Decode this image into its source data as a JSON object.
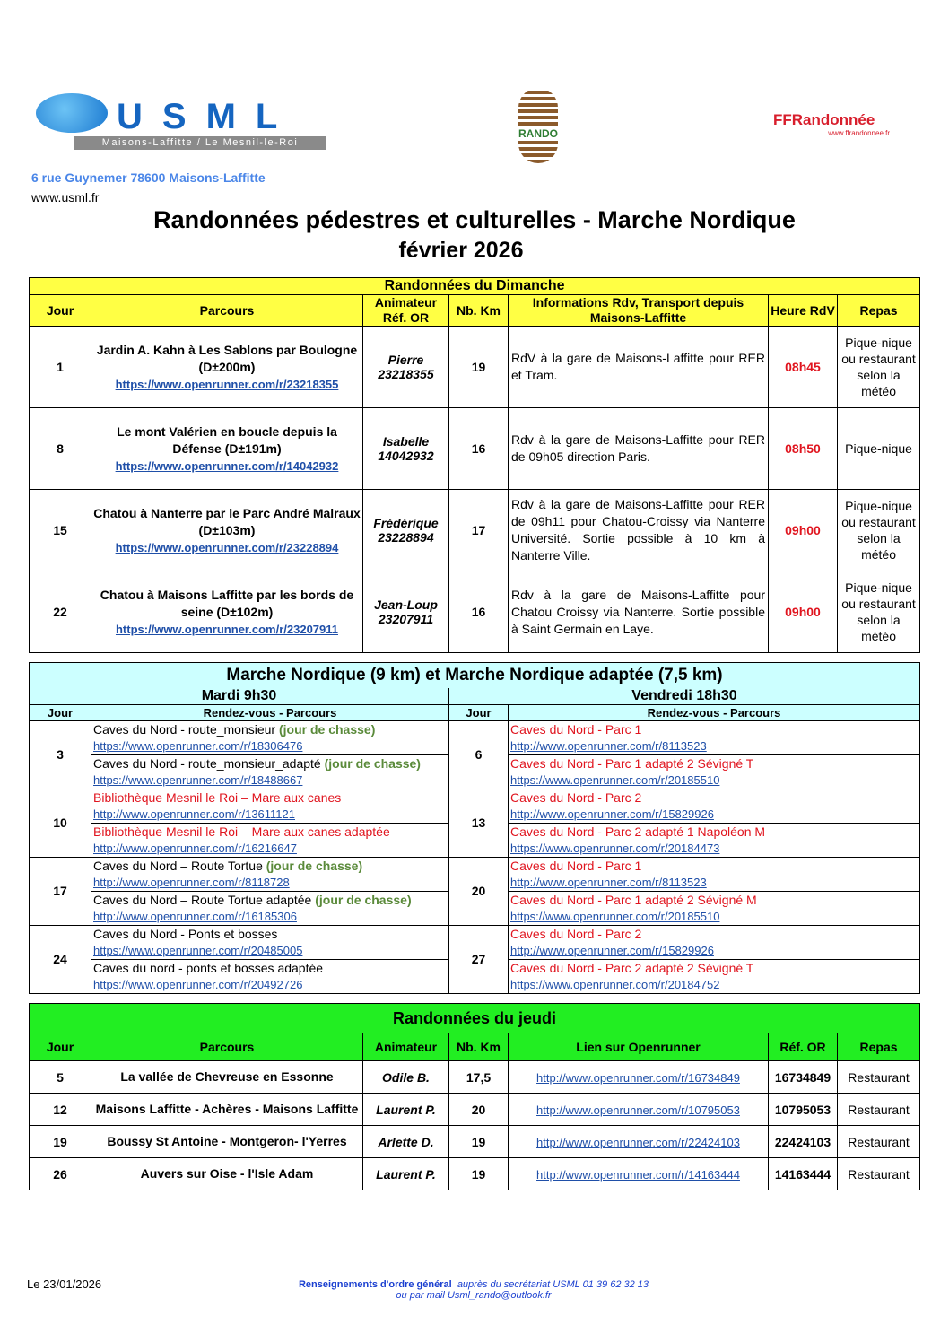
{
  "header": {
    "usml_logo_text": "USML",
    "usml_logo_sub": "Maisons-Laffitte / Le Mesnil-le-Roi",
    "rando_logo_text": "RANDO",
    "ffr_logo_text": "FFRandonnée",
    "ffr_logo_url": "www.ffrandonnee.fr",
    "address": "6 rue Guynemer 78600 Maisons-Laffitte",
    "website": "www.usml.fr",
    "title": "Randonnées pédestres et culturelles - Marche Nordique",
    "month": "février 2026"
  },
  "colors": {
    "sunday": "#ffff44",
    "nordic": "#ccffff",
    "thursday": "#22ee22",
    "time": "#e0141e",
    "link": "#1f4fa8",
    "hunting": "#5a8a3a"
  },
  "sunday": {
    "title": "Randonnées du Dimanche",
    "headers": [
      "Jour",
      "Parcours",
      "Animateur\nRéf. OR",
      "Nb. Km",
      "Informations Rdv, Transport depuis Maisons-Laffitte",
      "Heure RdV",
      "Repas"
    ],
    "rows": [
      {
        "jour": "1",
        "parcours": "Jardin A. Kahn à Les Sablons par Boulogne (D±200m)",
        "link": "https://www.openrunner.com/r/23218355",
        "animateur": "Pierre",
        "ref": "23218355",
        "km": "19",
        "info": "RdV à la gare de Maisons-Laffitte pour RER et Tram.",
        "heure": "08h45",
        "repas": "Pique-nique ou restaurant selon la météo"
      },
      {
        "jour": "8",
        "parcours": "Le mont Valérien en boucle depuis la Défense (D±191m)",
        "link": "https://www.openrunner.com/r/14042932",
        "animateur": "Isabelle",
        "ref": "14042932",
        "km": "16",
        "info": "Rdv à la gare de Maisons-Laffitte pour RER de 09h05 direction Paris.",
        "heure": "08h50",
        "repas": "Pique-nique"
      },
      {
        "jour": "15",
        "parcours": "Chatou à Nanterre par le Parc André Malraux (D±103m)",
        "link": "https://www.openrunner.com/r/23228894",
        "animateur": "Frédérique",
        "ref": "23228894",
        "km": "17",
        "info": "Rdv à la gare de Maisons-Laffitte pour RER de 09h11 pour Chatou-Croissy via Nanterre Université. Sortie possible à 10 km à Nanterre Ville.",
        "heure": "09h00",
        "repas": "Pique-nique ou restaurant selon la météo"
      },
      {
        "jour": "22",
        "parcours": "Chatou à Maisons Laffitte par les bords de seine (D±102m)",
        "link": "https://www.openrunner.com/r/23207911",
        "animateur": "Jean-Loup",
        "ref": "23207911",
        "km": "16",
        "info": "Rdv à la gare de Maisons-Laffitte pour Chatou Croissy via Nanterre. Sortie possible à Saint Germain en Laye.",
        "heure": "09h00",
        "repas": "Pique-nique ou restaurant selon la météo"
      }
    ]
  },
  "nordic": {
    "title": "Marche Nordique (9 km) et Marche Nordique adaptée (7,5 km)",
    "tuesday_label": "Mardi 9h30",
    "friday_label": "Vendredi 18h30",
    "headers": [
      "Jour",
      "Rendez-vous - Parcours",
      "Jour",
      "Rendez-vous - Parcours"
    ],
    "rows": [
      {
        "tue": "3",
        "tue_items": [
          {
            "name": "Caves du Nord - route_monsieur",
            "note": "(jour de chasse)",
            "link": "https://www.openrunner.com/r/18306476",
            "red": false
          },
          {
            "name": "Caves du Nord - route_monsieur_adapté",
            "note": "(jour de chasse)",
            "link": "https://www.openrunner.com/r/18488667",
            "red": false
          }
        ],
        "fri": "6",
        "fri_items": [
          {
            "name": "Caves du Nord - Parc 1",
            "link": "http://www.openrunner.com/r/8113523",
            "red": true
          },
          {
            "name": "Caves du Nord - Parc 1 adapté 2 Sévigné T",
            "link": "https://www.openrunner.com/r/20185510",
            "red": true
          }
        ]
      },
      {
        "tue": "10",
        "tue_items": [
          {
            "name": "Bibliothèque Mesnil le Roi – Mare aux canes",
            "link": "http://www.openrunner.com/r/13611121",
            "red": true
          },
          {
            "name": "Bibliothèque Mesnil le Roi – Mare aux canes adaptée",
            "link": "http://www.openrunner.com/r/16216647",
            "red": true
          }
        ],
        "fri": "13",
        "fri_items": [
          {
            "name": "Caves du Nord - Parc 2",
            "link": "http://www.openrunner.com/r/15829926",
            "red": true
          },
          {
            "name": "Caves du Nord - Parc 2 adapté 1 Napoléon M",
            "link": "https://www.openrunner.com/r/20184473",
            "red": true
          }
        ]
      },
      {
        "tue": "17",
        "tue_items": [
          {
            "name": "Caves du Nord –  Route Tortue",
            "note": "(jour de chasse)",
            "link": "http://www.openrunner.com/r/8118728",
            "red": false
          },
          {
            "name": "Caves du Nord –  Route Tortue adaptée",
            "note": "(jour de chasse)",
            "link": "http://www.openrunner.com/r/16185306",
            "red": false
          }
        ],
        "fri": "20",
        "fri_items": [
          {
            "name": "Caves du Nord - Parc 1",
            "link": "http://www.openrunner.com/r/8113523",
            "red": true
          },
          {
            "name": "Caves du Nord - Parc 1 adapté 2 Sévigné M",
            "link": "https://www.openrunner.com/r/20185510",
            "red": true
          }
        ]
      },
      {
        "tue": "24",
        "tue_items": [
          {
            "name": "Caves du Nord - Ponts et bosses",
            "link": "https://www.openrunner.com/r/20485005",
            "red": false
          },
          {
            "name": "Caves du nord - ponts et bosses adaptée",
            "link": "https://www.openrunner.com/r/20492726",
            "red": false
          }
        ],
        "fri": "27",
        "fri_items": [
          {
            "name": "Caves du Nord - Parc 2",
            "link": "http://www.openrunner.com/r/15829926",
            "red": true
          },
          {
            "name": "Caves du Nord - Parc 2 adapté 2 Sévigné T",
            "link": "https://www.openrunner.com/r/20184752",
            "red": true
          }
        ]
      }
    ]
  },
  "thursday": {
    "title": "Randonnées du jeudi",
    "headers": [
      "Jour",
      "Parcours",
      "Animateur",
      "Nb. Km",
      "Lien sur Openrunner",
      "Réf. OR",
      "Repas"
    ],
    "rows": [
      {
        "jour": "5",
        "parcours": "La vallée de Chevreuse en Essonne",
        "animateur": "Odile B.",
        "km": "17,5",
        "link": "http://www.openrunner.com/r/16734849",
        "ref": "16734849",
        "repas": "Restaurant"
      },
      {
        "jour": "12",
        "parcours": "Maisons Laffitte - Achères - Maisons Laffitte",
        "animateur": "Laurent P.",
        "km": "20",
        "link": "http://www.openrunner.com/r/10795053",
        "ref": "10795053",
        "repas": "Restaurant"
      },
      {
        "jour": "19",
        "parcours": "Boussy St Antoine - Montgeron- l'Yerres",
        "animateur": "Arlette D.",
        "km": "19",
        "link": "http://www.openrunner.com/r/22424103",
        "ref": "22424103",
        "repas": "Restaurant"
      },
      {
        "jour": "26",
        "parcours": "Auvers sur Oise - l'Isle Adam",
        "animateur": "Laurent P.",
        "km": "19",
        "link": "http://www.openrunner.com/r/14163444",
        "ref": "14163444",
        "repas": "Restaurant"
      }
    ]
  },
  "footer": {
    "date": "Le 23/01/2026",
    "info_bold": "Renseignements d'ordre général",
    "info_rest": "auprès du secrétariat USML 01 39 62 32 13",
    "info_line2": "ou par mail Usml_rando@outlook.fr"
  }
}
